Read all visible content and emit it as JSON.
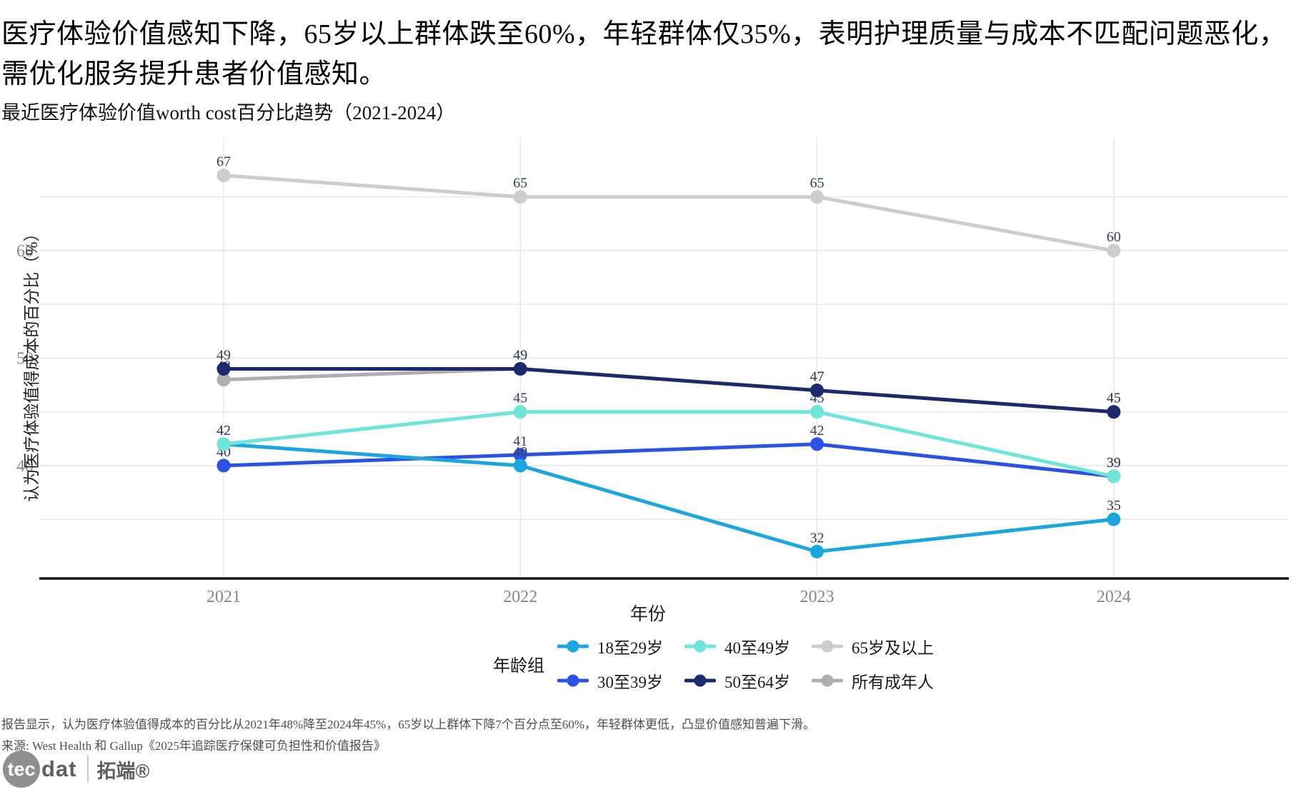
{
  "headline": "医疗体验价值感知下降，65岁以上群体跌至60%，年轻群体仅35%，表明护理质量与成本不匹配问题恶化，需优化服务提升患者价值感知。",
  "chart_data": {
    "type": "line",
    "title": "最近医疗体验价值worth cost百分比趋势（2021-2024）",
    "x": [
      "2021",
      "2022",
      "2023",
      "2024"
    ],
    "xlabel": "年份",
    "ylabel": "认为医疗体验值得成本的百分比（%）",
    "ylim": [
      29.5,
      68.5
    ],
    "yticks": [
      40,
      50,
      60
    ],
    "grid_y": [
      35,
      40,
      45,
      50,
      55,
      60,
      65
    ],
    "grid": true,
    "legend_position": "bottom",
    "series": [
      {
        "name": "65岁及以上",
        "color": "#CDCDCD",
        "values": [
          67,
          65,
          65,
          60
        ]
      },
      {
        "name": "所有成年人",
        "color": "#AEAEB2",
        "values": [
          48,
          49,
          47,
          45
        ]
      },
      {
        "name": "30至39岁",
        "color": "#2B52E5",
        "values": [
          40,
          41,
          42,
          39
        ]
      },
      {
        "name": "18至29岁",
        "color": "#1CA6E0",
        "values": [
          42,
          40,
          32,
          35
        ]
      },
      {
        "name": "40至49岁",
        "color": "#6FE5DA",
        "values": [
          42,
          45,
          45,
          39
        ]
      },
      {
        "name": "50至64岁",
        "color": "#1B2A6B",
        "values": [
          49,
          49,
          47,
          45
        ]
      }
    ],
    "legend_title": "年龄组",
    "legend_order": [
      3,
      4,
      0,
      2,
      5,
      1
    ]
  },
  "footnote": "报告显示，认为医疗体验值得成本的百分比从2021年48%降至2024年45%，65岁以上群体下降7个百分点至60%，年轻群体更低，凸显价值感知普遍下滑。",
  "source": "来源: West Health 和 Gallup《2025年追踪医疗保健可负担性和价值报告》",
  "logo": {
    "circle_text": "tec",
    "rest_text": "dat",
    "brand": "拓端®"
  }
}
